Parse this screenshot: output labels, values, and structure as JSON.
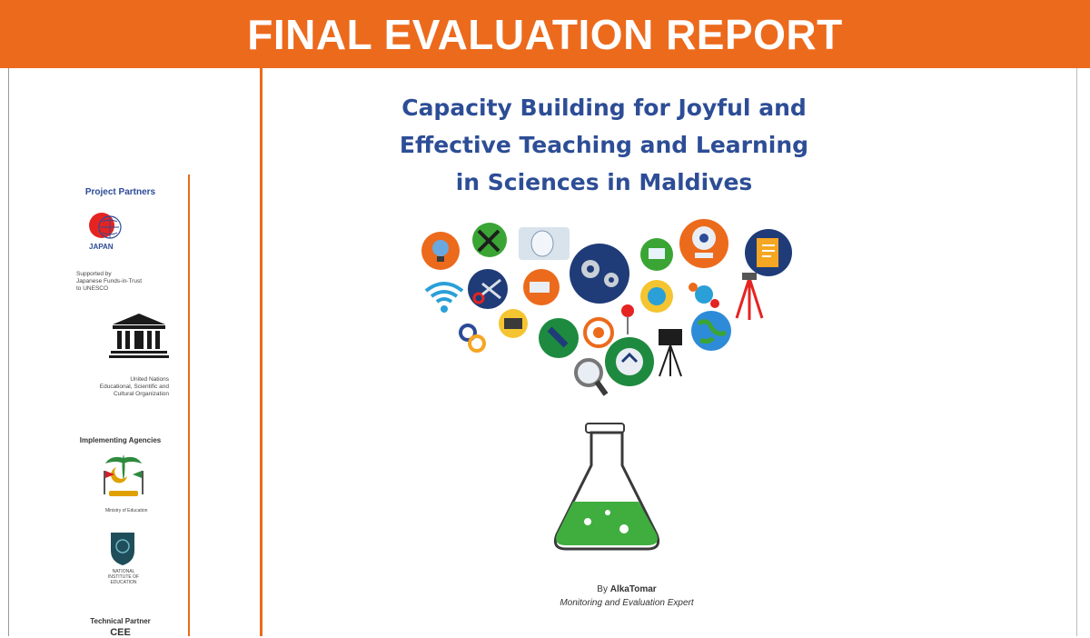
{
  "banner": {
    "title": "FINAL EVALUATION REPORT"
  },
  "cover": {
    "title_lines": [
      "Capacity Building for Joyful and",
      "Effective Teaching and Learning",
      "in Sciences in Maldives"
    ],
    "by_prefix": "By",
    "author": "AlkaTomar",
    "author_role": "Monitoring and Evaluation Expert"
  },
  "sidebar": {
    "partners_heading": "Project Partners",
    "japan_logo_text": "JAPAN",
    "japan_note": [
      "Supported by",
      "Japanese Funds-in-Trust",
      "to UNESCO"
    ],
    "unesco_note": [
      "United Nations",
      "Educational, Scientific and",
      "Cultural Organization"
    ],
    "agencies_heading": "Implementing Agencies",
    "ministry_caption": "Ministry of Education",
    "institute_caption": [
      "NATIONAL",
      "INSTITUTE OF",
      "EDUCATION"
    ],
    "technical_heading": "Technical Partner",
    "technical_name": "CEE"
  },
  "colors": {
    "accent": "#ec6a1c",
    "title_blue": "#2d4d96",
    "flask_green": "#3fae3f"
  }
}
